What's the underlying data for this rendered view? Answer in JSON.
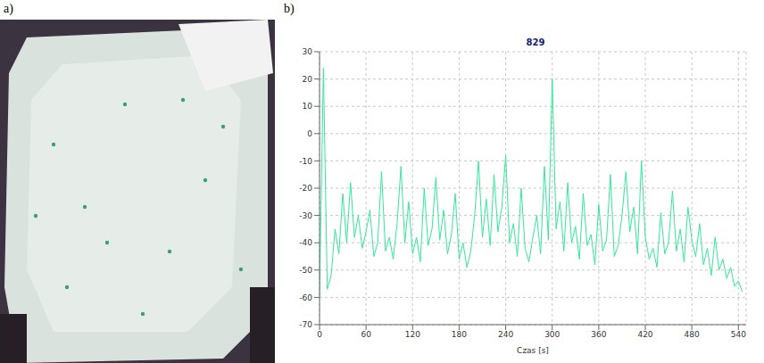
{
  "panel_labels": [
    "a)",
    "b)"
  ],
  "chart_data": {
    "type": "line",
    "title": "829",
    "x_label": "Czas [s]",
    "x": [
      0,
      5,
      10,
      15,
      20,
      25,
      30,
      35,
      40,
      45,
      50,
      55,
      60,
      65,
      70,
      75,
      80,
      85,
      90,
      95,
      100,
      105,
      110,
      115,
      120,
      125,
      130,
      135,
      140,
      145,
      150,
      155,
      160,
      165,
      170,
      175,
      180,
      185,
      190,
      195,
      200,
      205,
      210,
      215,
      220,
      225,
      230,
      235,
      240,
      245,
      250,
      255,
      260,
      265,
      270,
      275,
      280,
      285,
      290,
      295,
      300,
      305,
      310,
      315,
      320,
      325,
      330,
      335,
      340,
      345,
      350,
      355,
      360,
      365,
      370,
      375,
      380,
      385,
      390,
      395,
      400,
      405,
      410,
      415,
      420,
      425,
      430,
      435,
      440,
      445,
      450,
      455,
      460,
      465,
      470,
      475,
      480,
      485,
      490,
      495,
      500,
      505,
      510,
      515,
      520,
      525,
      530,
      535,
      540,
      545
    ],
    "values": [
      -60,
      24,
      -57,
      -52,
      -35,
      -44,
      -22,
      -40,
      -18,
      -38,
      -30,
      -42,
      -36,
      -28,
      -45,
      -40,
      -14,
      -43,
      -38,
      -46,
      -33,
      -12,
      -40,
      -25,
      -44,
      -38,
      -47,
      -20,
      -41,
      -35,
      -16,
      -39,
      -28,
      -44,
      -37,
      -22,
      -46,
      -40,
      -49,
      -43,
      -30,
      -10,
      -38,
      -24,
      -41,
      -15,
      -36,
      -27,
      -8,
      -40,
      -33,
      -45,
      -20,
      -42,
      -47,
      -38,
      -30,
      -44,
      -12,
      -39,
      20,
      -35,
      -25,
      -43,
      -18,
      -40,
      -34,
      -46,
      -22,
      -41,
      -37,
      -48,
      -26,
      -43,
      -39,
      -15,
      -45,
      -41,
      -30,
      -14,
      -36,
      -27,
      -44,
      -10,
      -38,
      -46,
      -42,
      -49,
      -29,
      -44,
      -40,
      -21,
      -43,
      -35,
      -47,
      -27,
      -39,
      -45,
      -33,
      -48,
      -42,
      -52,
      -38,
      -50,
      -46,
      -53,
      -49,
      -56,
      -54,
      -58
    ],
    "color": "#33e89a",
    "xlim": [
      0,
      550
    ],
    "xticks": [
      0,
      60,
      120,
      180,
      240,
      300,
      360,
      420,
      480,
      540
    ],
    "ylim": [
      -70,
      30
    ],
    "yticks": [
      -70,
      -60,
      -50,
      -40,
      -30,
      -20,
      -10,
      0,
      10,
      20,
      30
    ],
    "grid": true
  }
}
